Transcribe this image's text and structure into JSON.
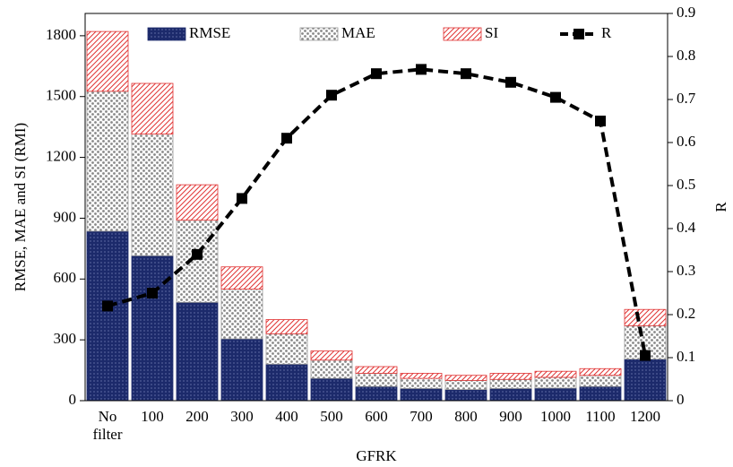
{
  "chart_data": {
    "type": "bar",
    "stacked": true,
    "xlabel": "GFRK",
    "ylabel": "RMSE, MAE and SI (RMI)",
    "y2label": "R",
    "categories": [
      "No filter",
      "100",
      "200",
      "300",
      "400",
      "500",
      "600",
      "700",
      "800",
      "900",
      "1000",
      "1100",
      "1200"
    ],
    "series": [
      {
        "name": "RMSE",
        "color": "#1c2a6b",
        "values": [
          836,
          715,
          485,
          305,
          180,
          110,
          70,
          60,
          55,
          60,
          62,
          70,
          205
        ]
      },
      {
        "name": "MAE",
        "color": "#9a9a9a",
        "values": [
          690,
          600,
          405,
          245,
          150,
          90,
          65,
          50,
          45,
          45,
          53,
          55,
          165
        ]
      },
      {
        "name": "SI",
        "color": "#e03030",
        "values": [
          295,
          250,
          175,
          110,
          70,
          45,
          33,
          25,
          25,
          30,
          30,
          33,
          80
        ]
      },
      {
        "name": "R",
        "type": "line",
        "axis": "y2",
        "color": "#000000",
        "values": [
          0.22,
          0.25,
          0.34,
          0.47,
          0.61,
          0.71,
          0.76,
          0.77,
          0.76,
          0.74,
          0.705,
          0.65,
          0.105
        ]
      }
    ],
    "ylim": [
      0,
      1910
    ],
    "yticks": [
      0,
      300,
      600,
      900,
      1200,
      1500,
      1800
    ],
    "y2lim": [
      0,
      0.9
    ],
    "y2ticks": [
      0,
      0.1,
      0.2,
      0.3,
      0.4,
      0.5,
      0.6,
      0.7,
      0.8,
      0.9
    ],
    "legend": "top"
  }
}
